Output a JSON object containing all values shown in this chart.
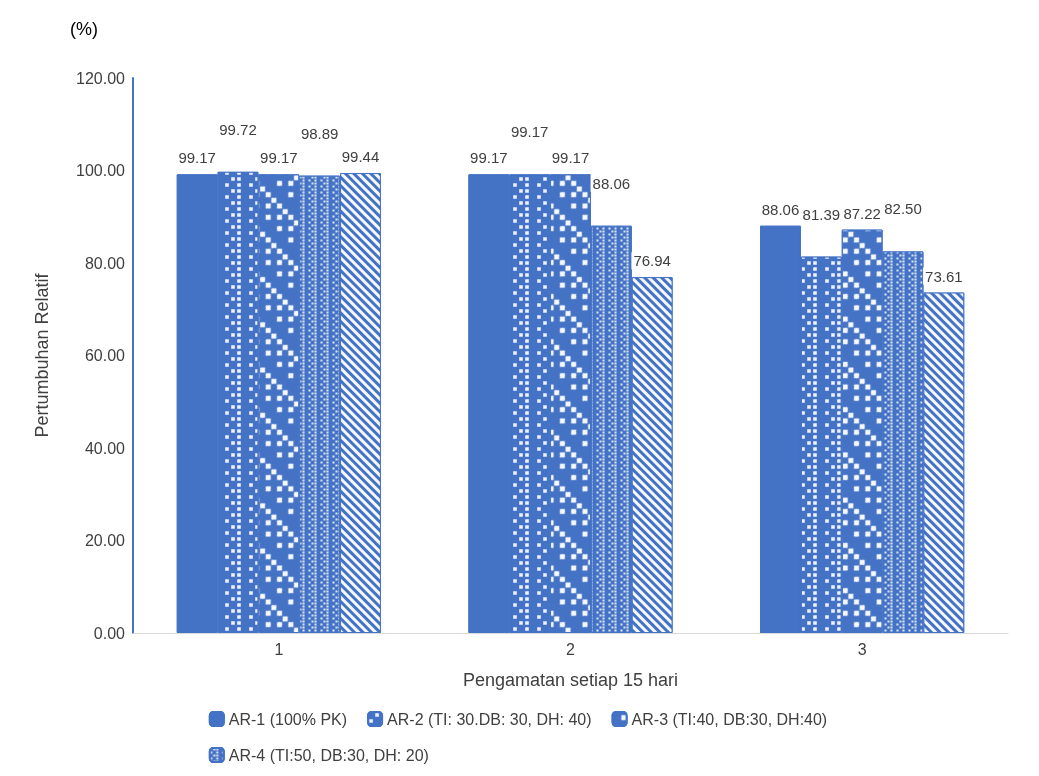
{
  "chart_data": {
    "type": "bar",
    "xlabel": "Pengamatan setiap 15 hari",
    "ylabel": "Pertumbuhan Relatif",
    "annotations": [
      "(%)"
    ],
    "categories": [
      "1",
      "2",
      "3"
    ],
    "series": [
      {
        "name": "AR-1 (100% PK)",
        "color": "#4472c4",
        "values": [
          99.17,
          99.17,
          88.06
        ],
        "value_labels": [
          "99.17",
          "99.17",
          "88.06"
        ]
      },
      {
        "name": "AR-2 (TI: 30.DB: 30, DH: 40)",
        "color": "#4472c4",
        "values": [
          99.72,
          99.17,
          81.39
        ],
        "value_labels": [
          "99.72",
          "99.17",
          "81.39"
        ]
      },
      {
        "name": "AR-3 (TI:40, DB:30, DH:40)",
        "color": "#4472c4",
        "values": [
          99.17,
          99.17,
          87.22
        ],
        "value_labels": [
          "99.17",
          "99.17",
          "87.22"
        ]
      },
      {
        "name": "AR-4 (TI:50, DB:30, DH: 20)",
        "color": "#4472c4",
        "values": [
          98.89,
          88.06,
          82.5
        ],
        "value_labels": [
          "98.89",
          "88.06",
          "82.50"
        ]
      },
      {
        "color": "#4472c4",
        "values": [
          99.44,
          76.94,
          73.61
        ],
        "value_labels": [
          "99.44",
          "76.94",
          "73.61"
        ]
      }
    ],
    "ylim": [
      0,
      120
    ],
    "yticks": [
      {
        "value": 0,
        "label": "0.00"
      },
      {
        "value": 20,
        "label": "20.00"
      },
      {
        "value": 40,
        "label": "40.00"
      },
      {
        "value": 60,
        "label": "60.00"
      },
      {
        "value": 80,
        "label": "80.00"
      },
      {
        "value": 100,
        "label": "100.00"
      },
      {
        "value": 120,
        "label": "120.00"
      }
    ],
    "grid": false,
    "legend": "bottom"
  }
}
